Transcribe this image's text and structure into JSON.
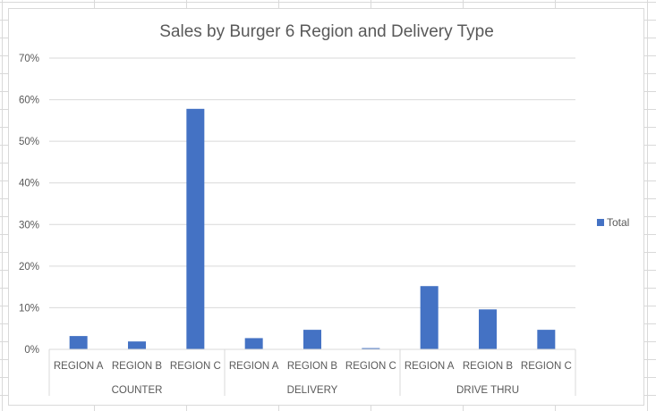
{
  "chart_data": {
    "type": "bar",
    "title": "Sales by Burger 6 Region and Delivery Type",
    "groups": [
      {
        "label": "COUNTER",
        "categories": [
          "REGION A",
          "REGION B",
          "REGION C"
        ]
      },
      {
        "label": "DELIVERY",
        "categories": [
          "REGION A",
          "REGION B",
          "REGION C"
        ]
      },
      {
        "label": "DRIVE THRU",
        "categories": [
          "REGION A",
          "REGION B",
          "REGION C"
        ]
      }
    ],
    "series": [
      {
        "name": "Total",
        "color": "#4472c4",
        "values": [
          3.2,
          1.9,
          57.8,
          2.7,
          4.7,
          0.3,
          15.2,
          9.6,
          4.7
        ]
      }
    ],
    "yticks": [
      "0%",
      "10%",
      "20%",
      "30%",
      "40%",
      "50%",
      "60%",
      "70%"
    ],
    "ylim": [
      0,
      70
    ],
    "value_unit": "%",
    "grid": true,
    "legend_position": "right"
  }
}
